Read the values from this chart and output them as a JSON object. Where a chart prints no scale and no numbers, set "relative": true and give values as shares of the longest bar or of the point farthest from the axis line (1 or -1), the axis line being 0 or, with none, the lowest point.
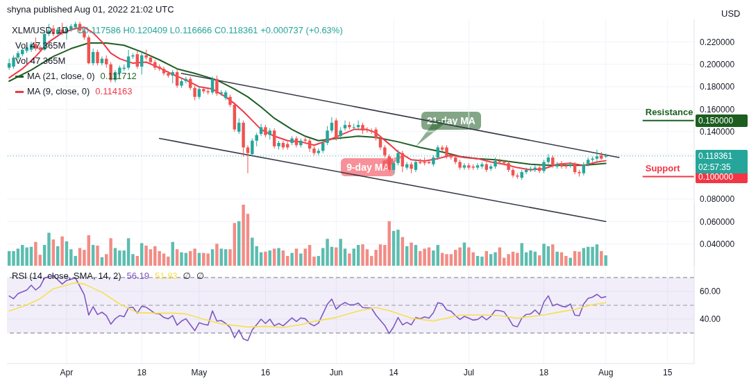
{
  "chart_data": [
    {
      "type": "candlestick",
      "title": "XLM/USD, 1D",
      "subtitle": "O0.117586 H0.120409 L0.116666 C0.118361 +0.000737 (+0.63%)",
      "ylabel": "USD",
      "annotations": [
        "shyna published Aug 01, 2022 21:02 UTC",
        "Vol 47.365M",
        "Vol 47.365M",
        "0.111712",
        "0.114163",
        {
          "text": "21-day MA",
          "x": "2022-06-19",
          "y": 0.127
        },
        {
          "text": "9-day MA",
          "x": "2022-06-17",
          "y": 0.12
        },
        "02:57:35"
      ],
      "x": [
        "2022-03-19",
        "2022-03-20",
        "2022-03-21",
        "2022-03-22",
        "2022-03-23",
        "2022-03-24",
        "2022-03-25",
        "2022-03-26",
        "2022-03-27",
        "2022-03-28",
        "2022-03-29",
        "2022-03-30",
        "2022-03-31",
        "2022-04-01",
        "2022-04-02",
        "2022-04-03",
        "2022-04-04",
        "2022-04-05",
        "2022-04-06",
        "2022-04-07",
        "2022-04-08",
        "2022-04-09",
        "2022-04-10",
        "2022-04-11",
        "2022-04-12",
        "2022-04-13",
        "2022-04-14",
        "2022-04-15",
        "2022-04-16",
        "2022-04-17",
        "2022-04-18",
        "2022-04-19",
        "2022-04-20",
        "2022-04-21",
        "2022-04-22",
        "2022-04-23",
        "2022-04-24",
        "2022-04-25",
        "2022-04-26",
        "2022-04-27",
        "2022-04-28",
        "2022-04-29",
        "2022-04-30",
        "2022-05-01",
        "2022-05-02",
        "2022-05-03",
        "2022-05-04",
        "2022-05-05",
        "2022-05-06",
        "2022-05-07",
        "2022-05-08",
        "2022-05-09",
        "2022-05-10",
        "2022-05-11",
        "2022-05-12",
        "2022-05-13",
        "2022-05-14",
        "2022-05-15",
        "2022-05-16",
        "2022-05-17",
        "2022-05-18",
        "2022-05-19",
        "2022-05-20",
        "2022-05-21",
        "2022-05-22",
        "2022-05-23",
        "2022-05-24",
        "2022-05-25",
        "2022-05-26",
        "2022-05-27",
        "2022-05-28",
        "2022-05-29",
        "2022-05-30",
        "2022-05-31",
        "2022-06-01",
        "2022-06-02",
        "2022-06-03",
        "2022-06-04",
        "2022-06-05",
        "2022-06-06",
        "2022-06-07",
        "2022-06-08",
        "2022-06-09",
        "2022-06-10",
        "2022-06-11",
        "2022-06-12",
        "2022-06-13",
        "2022-06-14",
        "2022-06-15",
        "2022-06-16",
        "2022-06-17",
        "2022-06-18",
        "2022-06-19",
        "2022-06-20",
        "2022-06-21",
        "2022-06-22",
        "2022-06-23",
        "2022-06-24",
        "2022-06-25",
        "2022-06-26",
        "2022-06-27",
        "2022-06-28",
        "2022-06-29",
        "2022-06-30",
        "2022-07-01",
        "2022-07-02",
        "2022-07-03",
        "2022-07-04",
        "2022-07-05",
        "2022-07-06",
        "2022-07-07",
        "2022-07-08",
        "2022-07-09",
        "2022-07-10",
        "2022-07-11",
        "2022-07-12",
        "2022-07-13",
        "2022-07-14",
        "2022-07-15",
        "2022-07-16",
        "2022-07-17",
        "2022-07-18",
        "2022-07-19",
        "2022-07-20",
        "2022-07-21",
        "2022-07-22",
        "2022-07-23",
        "2022-07-24",
        "2022-07-25",
        "2022-07-26",
        "2022-07-27",
        "2022-07-28",
        "2022-07-29",
        "2022-07-30",
        "2022-07-31",
        "2022-08-01"
      ],
      "ohlc": [
        [
          0.197,
          0.205,
          0.195,
          0.201
        ],
        [
          0.198,
          0.208,
          0.196,
          0.206
        ],
        [
          0.206,
          0.212,
          0.204,
          0.21
        ],
        [
          0.209,
          0.215,
          0.207,
          0.213
        ],
        [
          0.212,
          0.217,
          0.21,
          0.215
        ],
        [
          0.213,
          0.22,
          0.211,
          0.218
        ],
        [
          0.218,
          0.224,
          0.212,
          0.214
        ],
        [
          0.215,
          0.217,
          0.211,
          0.213
        ],
        [
          0.213,
          0.229,
          0.212,
          0.227
        ],
        [
          0.227,
          0.236,
          0.225,
          0.23
        ],
        [
          0.232,
          0.235,
          0.225,
          0.227
        ],
        [
          0.227,
          0.233,
          0.225,
          0.231
        ],
        [
          0.231,
          0.237,
          0.226,
          0.228
        ],
        [
          0.228,
          0.234,
          0.222,
          0.232
        ],
        [
          0.231,
          0.236,
          0.229,
          0.234
        ],
        [
          0.233,
          0.238,
          0.231,
          0.236
        ],
        [
          0.236,
          0.238,
          0.228,
          0.23
        ],
        [
          0.23,
          0.232,
          0.222,
          0.224
        ],
        [
          0.224,
          0.226,
          0.2,
          0.201
        ],
        [
          0.201,
          0.214,
          0.199,
          0.211
        ],
        [
          0.211,
          0.213,
          0.199,
          0.201
        ],
        [
          0.201,
          0.207,
          0.199,
          0.205
        ],
        [
          0.205,
          0.208,
          0.197,
          0.2
        ],
        [
          0.2,
          0.202,
          0.184,
          0.186
        ],
        [
          0.186,
          0.195,
          0.184,
          0.193
        ],
        [
          0.192,
          0.199,
          0.19,
          0.197
        ],
        [
          0.196,
          0.2,
          0.194,
          0.197
        ],
        [
          0.197,
          0.213,
          0.195,
          0.207
        ],
        [
          0.207,
          0.21,
          0.205,
          0.208
        ],
        [
          0.209,
          0.212,
          0.196,
          0.198
        ],
        [
          0.198,
          0.21,
          0.191,
          0.208
        ],
        [
          0.208,
          0.213,
          0.204,
          0.206
        ],
        [
          0.206,
          0.208,
          0.2,
          0.202
        ],
        [
          0.202,
          0.204,
          0.195,
          0.197
        ],
        [
          0.198,
          0.2,
          0.194,
          0.196
        ],
        [
          0.196,
          0.198,
          0.19,
          0.192
        ],
        [
          0.192,
          0.194,
          0.188,
          0.19
        ],
        [
          0.19,
          0.195,
          0.183,
          0.193
        ],
        [
          0.193,
          0.195,
          0.179,
          0.181
        ],
        [
          0.181,
          0.187,
          0.179,
          0.185
        ],
        [
          0.185,
          0.189,
          0.183,
          0.187
        ],
        [
          0.187,
          0.189,
          0.177,
          0.179
        ],
        [
          0.179,
          0.181,
          0.168,
          0.171
        ],
        [
          0.171,
          0.18,
          0.169,
          0.178
        ],
        [
          0.178,
          0.18,
          0.174,
          0.176
        ],
        [
          0.176,
          0.178,
          0.173,
          0.175
        ],
        [
          0.175,
          0.189,
          0.173,
          0.187
        ],
        [
          0.187,
          0.19,
          0.172,
          0.174
        ],
        [
          0.174,
          0.177,
          0.172,
          0.175
        ],
        [
          0.17,
          0.177,
          0.168,
          0.175
        ],
        [
          0.171,
          0.173,
          0.162,
          0.164
        ],
        [
          0.164,
          0.166,
          0.14,
          0.142
        ],
        [
          0.14,
          0.152,
          0.138,
          0.148
        ],
        [
          0.148,
          0.15,
          0.118,
          0.126
        ],
        [
          0.126,
          0.128,
          0.103,
          0.121
        ],
        [
          0.12,
          0.134,
          0.118,
          0.132
        ],
        [
          0.132,
          0.139,
          0.127,
          0.137
        ],
        [
          0.138,
          0.147,
          0.136,
          0.144
        ],
        [
          0.144,
          0.146,
          0.135,
          0.137
        ],
        [
          0.137,
          0.143,
          0.133,
          0.141
        ],
        [
          0.141,
          0.143,
          0.125,
          0.127
        ],
        [
          0.127,
          0.132,
          0.124,
          0.13
        ],
        [
          0.13,
          0.132,
          0.124,
          0.126
        ],
        [
          0.129,
          0.131,
          0.124,
          0.126
        ],
        [
          0.13,
          0.136,
          0.128,
          0.134
        ],
        [
          0.134,
          0.136,
          0.126,
          0.128
        ],
        [
          0.128,
          0.134,
          0.126,
          0.132
        ],
        [
          0.133,
          0.135,
          0.13,
          0.132
        ],
        [
          0.132,
          0.134,
          0.122,
          0.125
        ],
        [
          0.125,
          0.127,
          0.119,
          0.121
        ],
        [
          0.121,
          0.125,
          0.119,
          0.123
        ],
        [
          0.123,
          0.132,
          0.121,
          0.13
        ],
        [
          0.13,
          0.145,
          0.128,
          0.141
        ],
        [
          0.141,
          0.153,
          0.139,
          0.148
        ],
        [
          0.15,
          0.152,
          0.132,
          0.134
        ],
        [
          0.136,
          0.144,
          0.133,
          0.141
        ],
        [
          0.143,
          0.15,
          0.141,
          0.146
        ],
        [
          0.146,
          0.149,
          0.142,
          0.144
        ],
        [
          0.144,
          0.147,
          0.142,
          0.144
        ],
        [
          0.144,
          0.15,
          0.142,
          0.146
        ],
        [
          0.146,
          0.148,
          0.138,
          0.141
        ],
        [
          0.142,
          0.144,
          0.139,
          0.141
        ],
        [
          0.141,
          0.143,
          0.138,
          0.14
        ],
        [
          0.142,
          0.144,
          0.132,
          0.134
        ],
        [
          0.134,
          0.136,
          0.124,
          0.126
        ],
        [
          0.126,
          0.128,
          0.117,
          0.119
        ],
        [
          0.118,
          0.12,
          0.104,
          0.106
        ],
        [
          0.106,
          0.114,
          0.102,
          0.112
        ],
        [
          0.112,
          0.124,
          0.11,
          0.121
        ],
        [
          0.121,
          0.123,
          0.104,
          0.109
        ],
        [
          0.108,
          0.113,
          0.106,
          0.111
        ],
        [
          0.111,
          0.113,
          0.103,
          0.107
        ],
        [
          0.106,
          0.115,
          0.104,
          0.113
        ],
        [
          0.113,
          0.116,
          0.111,
          0.112
        ],
        [
          0.113,
          0.117,
          0.11,
          0.112
        ],
        [
          0.113,
          0.115,
          0.111,
          0.112
        ],
        [
          0.111,
          0.119,
          0.109,
          0.117
        ],
        [
          0.117,
          0.128,
          0.115,
          0.126
        ],
        [
          0.126,
          0.128,
          0.122,
          0.124
        ],
        [
          0.126,
          0.128,
          0.116,
          0.118
        ],
        [
          0.118,
          0.12,
          0.115,
          0.117
        ],
        [
          0.117,
          0.119,
          0.111,
          0.113
        ],
        [
          0.113,
          0.115,
          0.106,
          0.108
        ],
        [
          0.108,
          0.112,
          0.106,
          0.11
        ],
        [
          0.11,
          0.112,
          0.106,
          0.108
        ],
        [
          0.109,
          0.111,
          0.106,
          0.108
        ],
        [
          0.108,
          0.112,
          0.106,
          0.11
        ],
        [
          0.109,
          0.113,
          0.107,
          0.111
        ],
        [
          0.111,
          0.113,
          0.104,
          0.106
        ],
        [
          0.107,
          0.111,
          0.105,
          0.109
        ],
        [
          0.109,
          0.117,
          0.107,
          0.114
        ],
        [
          0.114,
          0.116,
          0.111,
          0.113
        ],
        [
          0.113,
          0.115,
          0.11,
          0.112
        ],
        [
          0.112,
          0.114,
          0.104,
          0.106
        ],
        [
          0.106,
          0.108,
          0.099,
          0.101
        ],
        [
          0.101,
          0.103,
          0.098,
          0.1
        ],
        [
          0.099,
          0.106,
          0.097,
          0.104
        ],
        [
          0.104,
          0.108,
          0.102,
          0.106
        ],
        [
          0.106,
          0.109,
          0.104,
          0.107
        ],
        [
          0.106,
          0.11,
          0.104,
          0.108
        ],
        [
          0.108,
          0.11,
          0.103,
          0.105
        ],
        [
          0.105,
          0.115,
          0.103,
          0.113
        ],
        [
          0.113,
          0.12,
          0.111,
          0.117
        ],
        [
          0.117,
          0.119,
          0.108,
          0.11
        ],
        [
          0.109,
          0.113,
          0.107,
          0.111
        ],
        [
          0.112,
          0.114,
          0.107,
          0.109
        ],
        [
          0.11,
          0.112,
          0.107,
          0.109
        ],
        [
          0.11,
          0.113,
          0.108,
          0.111
        ],
        [
          0.111,
          0.113,
          0.102,
          0.104
        ],
        [
          0.104,
          0.106,
          0.1,
          0.103
        ],
        [
          0.103,
          0.113,
          0.101,
          0.111
        ],
        [
          0.111,
          0.117,
          0.109,
          0.115
        ],
        [
          0.115,
          0.118,
          0.113,
          0.116
        ],
        [
          0.116,
          0.124,
          0.114,
          0.118
        ],
        [
          0.119,
          0.122,
          0.115,
          0.116
        ],
        [
          0.117586,
          0.120409,
          0.116666,
          0.118361
        ]
      ],
      "series": [
        {
          "name": "MA (21, close, 0)",
          "type": "line",
          "color": "#1e5f24",
          "x": [
            "2022-03-19",
            "2022-03-24",
            "2022-03-29",
            "2022-04-02",
            "2022-04-06",
            "2022-04-10",
            "2022-04-14",
            "2022-04-18",
            "2022-04-22",
            "2022-04-26",
            "2022-04-30",
            "2022-05-05",
            "2022-05-09",
            "2022-05-12",
            "2022-05-15",
            "2022-05-18",
            "2022-05-22",
            "2022-05-25",
            "2022-05-28",
            "2022-06-01",
            "2022-06-06",
            "2022-06-10",
            "2022-06-15",
            "2022-06-20",
            "2022-06-25",
            "2022-06-29",
            "2022-07-03",
            "2022-07-07",
            "2022-07-11",
            "2022-07-15",
            "2022-07-19",
            "2022-07-23",
            "2022-07-27",
            "2022-08-01"
          ],
          "values": [
            0.185,
            0.195,
            0.207,
            0.214,
            0.219,
            0.219,
            0.217,
            0.211,
            0.204,
            0.196,
            0.192,
            0.186,
            0.178,
            0.171,
            0.162,
            0.152,
            0.142,
            0.136,
            0.132,
            0.134,
            0.136,
            0.135,
            0.131,
            0.126,
            0.122,
            0.118,
            0.116,
            0.115,
            0.113,
            0.111,
            0.11,
            0.11,
            0.11,
            0.111712
          ]
        },
        {
          "name": "MA (9, close, 0)",
          "type": "line",
          "color": "#f23645",
          "x": [
            "2022-03-19",
            "2022-03-22",
            "2022-03-25",
            "2022-03-28",
            "2022-03-31",
            "2022-04-03",
            "2022-04-05",
            "2022-04-07",
            "2022-04-09",
            "2022-04-11",
            "2022-04-13",
            "2022-04-16",
            "2022-04-19",
            "2022-04-22",
            "2022-04-25",
            "2022-04-28",
            "2022-05-01",
            "2022-05-04",
            "2022-05-07",
            "2022-05-09",
            "2022-05-11",
            "2022-05-13",
            "2022-05-15",
            "2022-05-18",
            "2022-05-21",
            "2022-05-24",
            "2022-05-27",
            "2022-05-30",
            "2022-06-02",
            "2022-06-05",
            "2022-06-08",
            "2022-06-10",
            "2022-06-13",
            "2022-06-15",
            "2022-06-18",
            "2022-06-21",
            "2022-06-24",
            "2022-06-27",
            "2022-06-30",
            "2022-07-03",
            "2022-07-06",
            "2022-07-09",
            "2022-07-12",
            "2022-07-15",
            "2022-07-18",
            "2022-07-21",
            "2022-07-24",
            "2022-07-27",
            "2022-07-30",
            "2022-08-01"
          ],
          "values": [
            0.188,
            0.196,
            0.207,
            0.22,
            0.228,
            0.232,
            0.233,
            0.228,
            0.22,
            0.21,
            0.205,
            0.201,
            0.202,
            0.197,
            0.191,
            0.186,
            0.18,
            0.178,
            0.171,
            0.165,
            0.158,
            0.15,
            0.142,
            0.136,
            0.132,
            0.131,
            0.128,
            0.132,
            0.137,
            0.142,
            0.142,
            0.139,
            0.129,
            0.122,
            0.115,
            0.114,
            0.116,
            0.119,
            0.117,
            0.116,
            0.113,
            0.111,
            0.108,
            0.106,
            0.107,
            0.111,
            0.112,
            0.11,
            0.113,
            0.114163
          ]
        },
        {
          "type": "line",
          "color": "#363a45",
          "x": [
            "2022-04-27",
            "2022-08-04"
          ],
          "values": [
            0.192,
            0.117
          ]
        },
        {
          "type": "line",
          "color": "#363a45",
          "x": [
            "2022-04-22",
            "2022-08-01"
          ],
          "values": [
            0.134,
            0.06
          ]
        }
      ],
      "ref_lines": [
        {
          "axis": "y",
          "value": 0.15,
          "label": "Resistance",
          "color": "#1b5e20",
          "line_style": "solid"
        },
        {
          "axis": "y",
          "value": 0.1,
          "label": "Support",
          "color": "#f23645",
          "line_style": "solid"
        },
        {
          "axis": "y",
          "value": 0.118361,
          "color": "#26a69a",
          "line_style": "dotted"
        }
      ],
      "xlim": [
        "2022-03-18T12:00",
        "2022-08-21"
      ],
      "ylim": [
        0.02,
        0.24
      ],
      "yticks": [
        {
          "value": 0.04,
          "label": "0.040000"
        },
        {
          "value": 0.06,
          "label": "0.060000"
        },
        {
          "value": 0.08,
          "label": "0.080000"
        },
        {
          "value": 0.1,
          "label": "0.100000"
        },
        {
          "value": 0.118361,
          "label": "0.118361"
        },
        {
          "value": 0.12,
          "label": null
        },
        {
          "value": 0.15,
          "label": "0.150000"
        },
        {
          "value": 0.14,
          "label": "0.140000"
        },
        {
          "value": 0.16,
          "label": "0.160000"
        },
        {
          "value": 0.18,
          "label": "0.180000"
        },
        {
          "value": 0.2,
          "label": "0.200000"
        },
        {
          "value": 0.22,
          "label": "0.220000"
        }
      ],
      "grid": true,
      "legend": "top left",
      "tick_labels": "y",
      "marker": "none",
      "line_style": "solid"
    },
    {
      "type": "bar",
      "relative": true,
      "tick_labels": false,
      "xlim": [
        "2022-03-18T12:00",
        "2022-08-21"
      ],
      "x": [
        "2022-03-19",
        "2022-03-20",
        "2022-03-21",
        "2022-03-22",
        "2022-03-23",
        "2022-03-24",
        "2022-03-25",
        "2022-03-26",
        "2022-03-27",
        "2022-03-28",
        "2022-03-29",
        "2022-03-30",
        "2022-03-31",
        "2022-04-01",
        "2022-04-02",
        "2022-04-03",
        "2022-04-04",
        "2022-04-05",
        "2022-04-06",
        "2022-04-07",
        "2022-04-08",
        "2022-04-09",
        "2022-04-10",
        "2022-04-11",
        "2022-04-12",
        "2022-04-13",
        "2022-04-14",
        "2022-04-15",
        "2022-04-16",
        "2022-04-17",
        "2022-04-18",
        "2022-04-19",
        "2022-04-20",
        "2022-04-21",
        "2022-04-22",
        "2022-04-23",
        "2022-04-24",
        "2022-04-25",
        "2022-04-26",
        "2022-04-27",
        "2022-04-28",
        "2022-04-29",
        "2022-04-30",
        "2022-05-01",
        "2022-05-02",
        "2022-05-03",
        "2022-05-04",
        "2022-05-05",
        "2022-05-06",
        "2022-05-07",
        "2022-05-08",
        "2022-05-09",
        "2022-05-10",
        "2022-05-11",
        "2022-05-12",
        "2022-05-13",
        "2022-05-14",
        "2022-05-15",
        "2022-05-16",
        "2022-05-17",
        "2022-05-18",
        "2022-05-19",
        "2022-05-20",
        "2022-05-21",
        "2022-05-22",
        "2022-05-23",
        "2022-05-24",
        "2022-05-25",
        "2022-05-26",
        "2022-05-27",
        "2022-05-28",
        "2022-05-29",
        "2022-05-30",
        "2022-05-31",
        "2022-06-01",
        "2022-06-02",
        "2022-06-03",
        "2022-06-04",
        "2022-06-05",
        "2022-06-06",
        "2022-06-07",
        "2022-06-08",
        "2022-06-09",
        "2022-06-10",
        "2022-06-11",
        "2022-06-12",
        "2022-06-13",
        "2022-06-14",
        "2022-06-15",
        "2022-06-16",
        "2022-06-17",
        "2022-06-18",
        "2022-06-19",
        "2022-06-20",
        "2022-06-21",
        "2022-06-22",
        "2022-06-23",
        "2022-06-24",
        "2022-06-25",
        "2022-06-26",
        "2022-06-27",
        "2022-06-28",
        "2022-06-29",
        "2022-06-30",
        "2022-07-01",
        "2022-07-02",
        "2022-07-03",
        "2022-07-04",
        "2022-07-05",
        "2022-07-06",
        "2022-07-07",
        "2022-07-08",
        "2022-07-09",
        "2022-07-10",
        "2022-07-11",
        "2022-07-12",
        "2022-07-13",
        "2022-07-14",
        "2022-07-15",
        "2022-07-16",
        "2022-07-17",
        "2022-07-18",
        "2022-07-19",
        "2022-07-20",
        "2022-07-21",
        "2022-07-22",
        "2022-07-23",
        "2022-07-24",
        "2022-07-25",
        "2022-07-26",
        "2022-07-27",
        "2022-07-28",
        "2022-07-29",
        "2022-07-30",
        "2022-07-31",
        "2022-08-01"
      ],
      "values": [
        0.24,
        0.24,
        0.28,
        0.34,
        0.3,
        0.31,
        0.39,
        0.18,
        0.34,
        0.54,
        0.43,
        0.32,
        0.48,
        0.4,
        0.27,
        0.16,
        0.29,
        0.26,
        0.5,
        0.34,
        0.33,
        0.14,
        0.19,
        0.45,
        0.29,
        0.25,
        0.25,
        0.45,
        0.19,
        0.16,
        0.37,
        0.33,
        0.27,
        0.32,
        0.24,
        0.2,
        0.15,
        0.39,
        0.27,
        0.22,
        0.21,
        0.24,
        0.28,
        0.21,
        0.21,
        0.2,
        0.27,
        0.36,
        0.28,
        0.27,
        0.27,
        0.7,
        0.73,
        1,
        0.85,
        0.46,
        0.32,
        0.22,
        0.23,
        0.25,
        0.28,
        0.29,
        0.25,
        0.16,
        0.21,
        0.28,
        0.2,
        0.28,
        0.34,
        0.15,
        0.16,
        0.29,
        0.44,
        0.31,
        0.3,
        0.44,
        0.28,
        0.2,
        0.28,
        0.34,
        0.35,
        0.27,
        0.16,
        0.26,
        0.35,
        0.34,
        0.73,
        0.57,
        0.59,
        0.47,
        0.32,
        0.38,
        0.34,
        0.24,
        0.28,
        0.3,
        0.25,
        0.34,
        0.21,
        0.19,
        0.19,
        0.26,
        0.3,
        0.38,
        0.3,
        0.22,
        0.16,
        0.15,
        0.24,
        0.19,
        0.22,
        0.3,
        0.13,
        0.19,
        0.23,
        0.21,
        0.37,
        0.22,
        0.25,
        0.23,
        0.17,
        0.36,
        0.32,
        0.35,
        0.23,
        0.22,
        0.16,
        0.13,
        0.24,
        0.23,
        0.29,
        0.31,
        0.31,
        0.35,
        0.24,
        0.17
      ],
      "colors": [
        "#5cbdb0",
        "#5cbdb0",
        "#5cbdb0",
        "#5cbdb0",
        "#5cbdb0",
        "#5cbdb0",
        "#f28c86",
        "#f28c86",
        "#5cbdb0",
        "#5cbdb0",
        "#f28c86",
        "#5cbdb0",
        "#f28c86",
        "#5cbdb0",
        "#5cbdb0",
        "#5cbdb0",
        "#f28c86",
        "#f28c86",
        "#f28c86",
        "#5cbdb0",
        "#f28c86",
        "#5cbdb0",
        "#f28c86",
        "#f28c86",
        "#5cbdb0",
        "#5cbdb0",
        "#5cbdb0",
        "#5cbdb0",
        "#5cbdb0",
        "#f28c86",
        "#5cbdb0",
        "#f28c86",
        "#f28c86",
        "#f28c86",
        "#f28c86",
        "#f28c86",
        "#f28c86",
        "#5cbdb0",
        "#f28c86",
        "#5cbdb0",
        "#5cbdb0",
        "#f28c86",
        "#f28c86",
        "#5cbdb0",
        "#f28c86",
        "#f28c86",
        "#5cbdb0",
        "#f28c86",
        "#5cbdb0",
        "#5cbdb0",
        "#f28c86",
        "#f28c86",
        "#5cbdb0",
        "#f28c86",
        "#f28c86",
        "#5cbdb0",
        "#5cbdb0",
        "#5cbdb0",
        "#f28c86",
        "#5cbdb0",
        "#f28c86",
        "#5cbdb0",
        "#f28c86",
        "#f28c86",
        "#5cbdb0",
        "#f28c86",
        "#5cbdb0",
        "#f28c86",
        "#f28c86",
        "#f28c86",
        "#5cbdb0",
        "#5cbdb0",
        "#5cbdb0",
        "#5cbdb0",
        "#f28c86",
        "#5cbdb0",
        "#5cbdb0",
        "#f28c86",
        "#5cbdb0",
        "#5cbdb0",
        "#f28c86",
        "#f28c86",
        "#f28c86",
        "#f28c86",
        "#f28c86",
        "#f28c86",
        "#f28c86",
        "#5cbdb0",
        "#5cbdb0",
        "#f28c86",
        "#5cbdb0",
        "#f28c86",
        "#5cbdb0",
        "#f28c86",
        "#f28c86",
        "#f28c86",
        "#5cbdb0",
        "#5cbdb0",
        "#f28c86",
        "#f28c86",
        "#f28c86",
        "#f28c86",
        "#f28c86",
        "#5cbdb0",
        "#f28c86",
        "#f28c86",
        "#5cbdb0",
        "#5cbdb0",
        "#f28c86",
        "#5cbdb0",
        "#5cbdb0",
        "#f28c86",
        "#f28c86",
        "#f28c86",
        "#f28c86",
        "#f28c86",
        "#5cbdb0",
        "#5cbdb0",
        "#5cbdb0",
        "#5cbdb0",
        "#f28c86",
        "#5cbdb0",
        "#5cbdb0",
        "#f28c86",
        "#5cbdb0",
        "#f28c86",
        "#f28c86",
        "#5cbdb0",
        "#f28c86",
        "#f28c86",
        "#5cbdb0",
        "#5cbdb0",
        "#5cbdb0",
        "#5cbdb0",
        "#f28c86",
        "#5cbdb0"
      ]
    },
    {
      "type": "line",
      "title": "RSI (14, close, SMA, 14, 2)",
      "annotations": [
        "56.19",
        "51.83",
        "∅",
        "∅"
      ],
      "series": [
        {
          "color": "#7e57c2",
          "x": [
            "2022-03-19",
            "2022-03-20",
            "2022-03-21",
            "2022-03-23",
            "2022-03-24",
            "2022-03-25",
            "2022-03-26",
            "2022-03-27",
            "2022-03-28",
            "2022-03-29",
            "2022-03-31",
            "2022-04-01",
            "2022-04-02",
            "2022-04-03",
            "2022-04-05",
            "2022-04-06",
            "2022-04-07",
            "2022-04-08",
            "2022-04-09",
            "2022-04-10",
            "2022-04-11",
            "2022-04-12",
            "2022-04-13",
            "2022-04-14",
            "2022-04-15",
            "2022-04-16",
            "2022-04-17",
            "2022-04-18",
            "2022-04-19",
            "2022-04-20",
            "2022-04-21",
            "2022-04-22",
            "2022-04-23",
            "2022-04-24",
            "2022-04-25",
            "2022-04-26",
            "2022-04-27",
            "2022-04-28",
            "2022-04-29",
            "2022-04-30",
            "2022-05-01",
            "2022-05-02",
            "2022-05-03",
            "2022-05-04",
            "2022-05-05",
            "2022-05-06",
            "2022-05-07",
            "2022-05-08",
            "2022-05-09",
            "2022-05-10",
            "2022-05-11",
            "2022-05-12",
            "2022-05-13",
            "2022-05-14",
            "2022-05-15",
            "2022-05-16",
            "2022-05-17",
            "2022-05-18",
            "2022-05-19",
            "2022-05-20",
            "2022-05-22",
            "2022-05-23",
            "2022-05-24",
            "2022-05-25",
            "2022-05-26",
            "2022-05-27",
            "2022-05-28",
            "2022-05-30",
            "2022-05-31",
            "2022-06-01",
            "2022-06-02",
            "2022-06-03",
            "2022-06-04",
            "2022-06-05",
            "2022-06-06",
            "2022-06-07",
            "2022-06-09",
            "2022-06-10",
            "2022-06-12",
            "2022-06-13",
            "2022-06-14",
            "2022-06-15",
            "2022-06-16",
            "2022-06-17",
            "2022-06-18",
            "2022-06-19",
            "2022-06-20",
            "2022-06-21",
            "2022-06-22",
            "2022-06-23",
            "2022-06-24",
            "2022-06-25",
            "2022-06-26",
            "2022-06-27",
            "2022-06-28",
            "2022-06-29",
            "2022-06-30",
            "2022-07-01",
            "2022-07-02",
            "2022-07-03",
            "2022-07-04",
            "2022-07-05",
            "2022-07-06",
            "2022-07-07",
            "2022-07-08",
            "2022-07-09",
            "2022-07-10",
            "2022-07-11",
            "2022-07-12",
            "2022-07-13",
            "2022-07-14",
            "2022-07-15",
            "2022-07-16",
            "2022-07-17",
            "2022-07-18",
            "2022-07-19",
            "2022-07-20",
            "2022-07-21",
            "2022-07-22",
            "2022-07-23",
            "2022-07-24",
            "2022-07-25",
            "2022-07-26",
            "2022-07-27",
            "2022-07-28",
            "2022-07-29",
            "2022-07-30",
            "2022-07-31",
            "2022-08-01"
          ],
          "values": [
            56.7,
            54.7,
            58.4,
            61,
            64.5,
            61,
            63.6,
            69.7,
            70.5,
            71.4,
            65.3,
            67.9,
            68.8,
            69.7,
            57.6,
            42.9,
            49,
            43.3,
            45,
            42.6,
            36.4,
            40.3,
            42.6,
            41.7,
            48.1,
            48.6,
            44.3,
            49.3,
            48.6,
            46.4,
            44.1,
            43.8,
            41.2,
            40.3,
            42.6,
            35.7,
            38.6,
            40.3,
            36,
            31.7,
            37.4,
            36.4,
            35.7,
            46,
            38.6,
            39,
            36.9,
            34,
            26.6,
            32.2,
            25.7,
            24.5,
            32.2,
            36,
            40,
            36.9,
            40,
            35.2,
            36.9,
            35.2,
            40.9,
            38.3,
            40.9,
            40.3,
            36.9,
            35.2,
            37.2,
            50.7,
            54.5,
            47.2,
            50.2,
            52,
            50.3,
            50.3,
            51.6,
            48.4,
            47.9,
            42.9,
            35.4,
            29.6,
            34.5,
            41.2,
            35.9,
            37.7,
            35.9,
            41.2,
            40.2,
            41.6,
            40.7,
            44.6,
            51.8,
            51.1,
            46.6,
            45.7,
            42.5,
            39.8,
            42,
            40.7,
            39.3,
            39.8,
            42.1,
            39.5,
            42.1,
            46.4,
            46.1,
            45.2,
            40.7,
            35.4,
            34.5,
            40.7,
            43.4,
            43.8,
            46.6,
            43.4,
            52.3,
            56.8,
            49.6,
            50.9,
            49.3,
            48.8,
            50.9,
            42.9,
            42.5,
            50.9,
            55,
            55.9,
            57.9,
            55.4,
            56.19
          ]
        },
        {
          "color": "#f5e04f",
          "x": [
            "2022-03-19",
            "2022-03-23",
            "2022-03-26",
            "2022-03-29",
            "2022-04-01",
            "2022-04-03",
            "2022-04-05",
            "2022-04-09",
            "2022-04-13",
            "2022-04-17",
            "2022-04-21",
            "2022-04-25",
            "2022-04-28",
            "2022-05-02",
            "2022-05-06",
            "2022-05-12",
            "2022-05-16",
            "2022-05-20",
            "2022-05-24",
            "2022-05-26",
            "2022-06-01",
            "2022-06-06",
            "2022-06-10",
            "2022-06-13",
            "2022-06-18",
            "2022-06-23",
            "2022-06-29",
            "2022-07-05",
            "2022-07-08",
            "2022-07-12",
            "2022-07-18",
            "2022-07-21",
            "2022-07-25",
            "2022-07-29",
            "2022-08-01"
          ],
          "values": [
            45.9,
            50.3,
            54.7,
            61.9,
            64.5,
            66.2,
            65.3,
            59.3,
            51,
            44.7,
            44.3,
            44.3,
            43.8,
            40,
            36.6,
            34.3,
            34.8,
            34,
            36,
            37.8,
            41.2,
            45.9,
            48.4,
            46.1,
            40.7,
            38.6,
            43,
            43,
            42.5,
            40.7,
            43,
            44.8,
            47,
            50.5,
            51.83
          ]
        }
      ],
      "bands": [
        {
          "axis": "y",
          "from": 30,
          "to": 70,
          "color": "#7e57c2"
        }
      ],
      "ref_lines": [
        {
          "axis": "y",
          "value": 70,
          "color": "#787b86",
          "line_style": "dashed"
        },
        {
          "axis": "y",
          "value": 50,
          "color": "#9598a1",
          "line_style": "dashed"
        },
        {
          "axis": "y",
          "value": 30,
          "color": "#787b86",
          "line_style": "dashed"
        }
      ],
      "xlim": [
        "2022-03-18T12:00",
        "2022-08-21"
      ],
      "xticks": [
        {
          "value": "2022-04-01",
          "label": "Apr"
        },
        {
          "value": "2022-04-18",
          "label": "18"
        },
        {
          "value": "2022-05-01",
          "label": "May"
        },
        {
          "value": "2022-05-16",
          "label": "16"
        },
        {
          "value": "2022-06-01",
          "label": "Jun"
        },
        {
          "value": "2022-06-14",
          "label": "14"
        },
        {
          "value": "2022-07-01",
          "label": "Jul"
        },
        {
          "value": "2022-07-18",
          "label": "18"
        },
        {
          "value": "2022-08-01",
          "label": "Aug"
        },
        {
          "value": "2022-08-15",
          "label": "15"
        }
      ],
      "ylim": [
        8,
        78
      ],
      "yticks": [
        {
          "value": 40,
          "label": "40.00"
        },
        {
          "value": 60,
          "label": "60.00"
        }
      ],
      "grid": true,
      "marker": "none",
      "line_style": "solid"
    }
  ]
}
